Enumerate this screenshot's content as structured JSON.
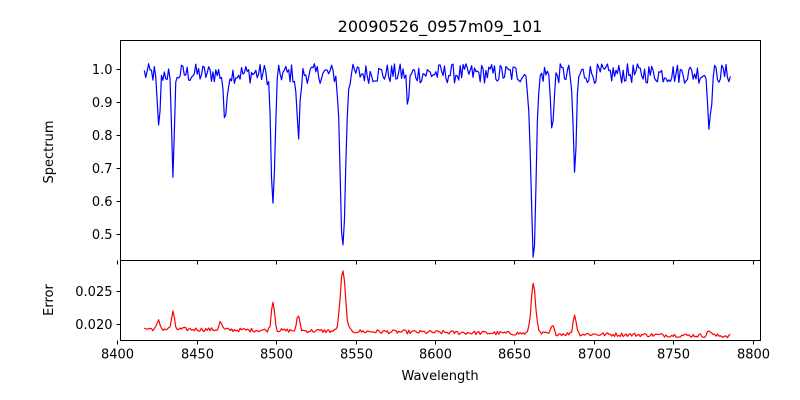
{
  "chart_data": [
    {
      "type": "line",
      "title": "20090526_0957m09_101",
      "xlabel": "",
      "ylabel": "Spectrum",
      "xlim": [
        8402,
        8805
      ],
      "ylim": [
        0.42,
        1.085
      ],
      "x_ticks": [
        8400,
        8450,
        8500,
        8550,
        8600,
        8650,
        8700,
        8750,
        8800
      ],
      "y_ticks": [
        0.5,
        0.6,
        0.7,
        0.8,
        0.9,
        1.0
      ],
      "y_tick_labels": [
        "0.5",
        "0.6",
        "0.7",
        "0.8",
        "0.9",
        "1.0"
      ],
      "grid": false,
      "series": [
        {
          "color": "#0000ff",
          "continuum": 0.985,
          "noise_amplitude": 0.03,
          "x_range": [
            8417,
            8786
          ],
          "absorption_lines": [
            {
              "center": 8426,
              "depth": 0.17,
              "width": 0.9
            },
            {
              "center": 8435,
              "depth": 0.29,
              "width": 0.9
            },
            {
              "center": 8468,
              "depth": 0.16,
              "width": 0.9
            },
            {
              "center": 8498,
              "depth": 0.41,
              "width": 1.2
            },
            {
              "center": 8514,
              "depth": 0.19,
              "width": 1.0
            },
            {
              "center": 8542,
              "depth": 0.53,
              "width": 1.6
            },
            {
              "center": 8583,
              "depth": 0.09,
              "width": 0.8
            },
            {
              "center": 8662,
              "depth": 0.54,
              "width": 1.6
            },
            {
              "center": 8674,
              "depth": 0.16,
              "width": 1.0
            },
            {
              "center": 8688,
              "depth": 0.31,
              "width": 1.0
            },
            {
              "center": 8773,
              "depth": 0.16,
              "width": 1.0
            }
          ]
        }
      ]
    },
    {
      "type": "line",
      "title": "",
      "xlabel": "Wavelength",
      "ylabel": "Error",
      "xlim": [
        8402,
        8805
      ],
      "ylim": [
        0.0174,
        0.0297
      ],
      "x_ticks": [
        8400,
        8450,
        8500,
        8550,
        8600,
        8650,
        8700,
        8750,
        8800
      ],
      "x_tick_labels": [
        "8400",
        "8450",
        "8500",
        "8550",
        "8600",
        "8650",
        "8700",
        "8750",
        "8800"
      ],
      "y_ticks": [
        0.02,
        0.025
      ],
      "y_tick_labels": [
        "0.020",
        "0.025"
      ],
      "grid": false,
      "series": [
        {
          "color": "#ff0000",
          "baseline_start": 0.0192,
          "baseline_end": 0.0181,
          "noise_amplitude": 0.0003,
          "x_range": [
            8417,
            8786
          ],
          "emission_peaks": [
            {
              "center": 8426,
              "height": 0.0012,
              "width": 0.9
            },
            {
              "center": 8435,
              "height": 0.0026,
              "width": 0.9
            },
            {
              "center": 8465,
              "height": 0.0012,
              "width": 0.9
            },
            {
              "center": 8498,
              "height": 0.0046,
              "width": 1.0
            },
            {
              "center": 8514,
              "height": 0.0024,
              "width": 0.9
            },
            {
              "center": 8542,
              "height": 0.0092,
              "width": 1.6
            },
            {
              "center": 8662,
              "height": 0.0078,
              "width": 1.4
            },
            {
              "center": 8674,
              "height": 0.0012,
              "width": 0.9
            },
            {
              "center": 8688,
              "height": 0.003,
              "width": 1.0
            },
            {
              "center": 8773,
              "height": 0.0008,
              "width": 1.2
            }
          ]
        }
      ]
    }
  ]
}
